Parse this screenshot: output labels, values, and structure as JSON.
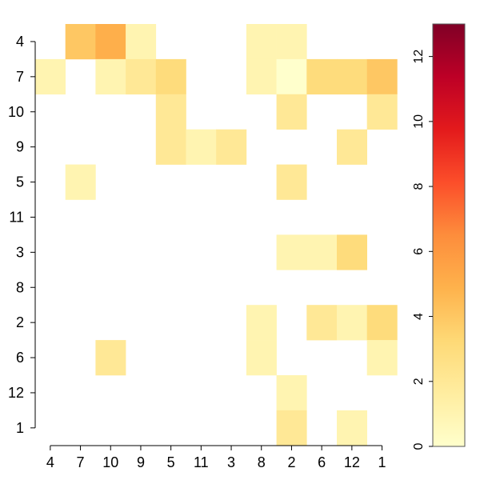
{
  "chart_data": {
    "type": "heatmap",
    "rows": [
      "4",
      "7",
      "10",
      "9",
      "5",
      "11",
      "3",
      "8",
      "2",
      "6",
      "12",
      "1"
    ],
    "cols": [
      "4",
      "7",
      "10",
      "9",
      "5",
      "11",
      "3",
      "8",
      "2",
      "6",
      "12",
      "1"
    ],
    "values": [
      [
        null,
        4,
        5,
        1,
        null,
        null,
        null,
        1,
        1,
        null,
        null,
        null
      ],
      [
        1,
        null,
        1,
        2,
        3,
        null,
        null,
        1,
        0,
        3,
        3,
        4
      ],
      [
        null,
        null,
        null,
        null,
        2,
        null,
        null,
        null,
        2,
        null,
        null,
        2
      ],
      [
        null,
        null,
        null,
        null,
        2,
        1,
        2,
        null,
        null,
        null,
        2,
        null
      ],
      [
        null,
        1,
        null,
        null,
        null,
        null,
        null,
        null,
        2,
        null,
        null,
        null
      ],
      [
        null,
        null,
        null,
        null,
        null,
        null,
        null,
        null,
        null,
        null,
        null,
        null
      ],
      [
        null,
        null,
        null,
        null,
        null,
        null,
        null,
        null,
        1,
        1,
        3,
        null
      ],
      [
        null,
        null,
        null,
        null,
        null,
        null,
        null,
        null,
        null,
        null,
        null,
        null
      ],
      [
        null,
        null,
        null,
        null,
        null,
        null,
        null,
        1,
        null,
        2,
        1,
        3
      ],
      [
        null,
        null,
        2,
        null,
        null,
        null,
        null,
        1,
        null,
        null,
        null,
        1
      ],
      [
        null,
        null,
        null,
        null,
        null,
        null,
        null,
        null,
        1,
        null,
        null,
        null
      ],
      [
        null,
        null,
        null,
        null,
        null,
        null,
        null,
        null,
        2,
        null,
        1,
        null
      ]
    ],
    "colorbar": {
      "min": 0,
      "max": 13,
      "ticks": [
        0,
        2,
        4,
        6,
        8,
        10,
        12
      ],
      "colors": [
        "#ffffcc",
        "#ffeda0",
        "#fed976",
        "#feb24c",
        "#fd8d3c",
        "#fc4e2a",
        "#e31a1c",
        "#bd0026",
        "#800026"
      ]
    },
    "title": "",
    "xlabel": "",
    "ylabel": ""
  }
}
